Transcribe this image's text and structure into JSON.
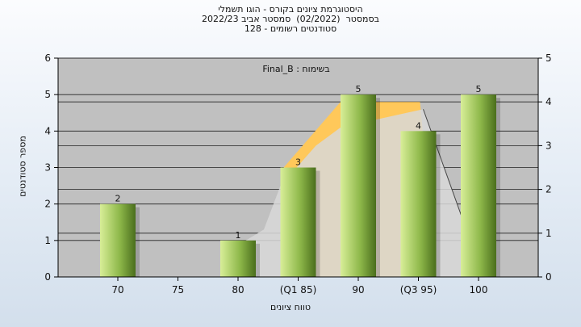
{
  "titles": {
    "line1": "היסטוגרמת ציונים בקורס - הוגו תשמלי",
    "line2": "בסמסטר  (02/2022)  סמסטר אביב 2022/23",
    "line3": "סטודנטים רשומים - 128"
  },
  "colors": {
    "plot_bg": "#c0c0c0",
    "bar_light": "#d8ee98",
    "bar_dark": "#4a6e1c",
    "quartile_band": "#ffc85a",
    "area_fill": "#d8d8d8"
  },
  "chart_data": {
    "type": "bar",
    "xlabel": "טווח ציונים",
    "ylabel": "מספר סטודנטים",
    "annotation": "בשימוח : Final_B",
    "ylim": [
      0,
      6
    ],
    "y_ticks": [
      0,
      1,
      2,
      3,
      4,
      5,
      6
    ],
    "y2lim": [
      0,
      5
    ],
    "y2_ticks": [
      0,
      1,
      2,
      3,
      4,
      5
    ],
    "grid": true,
    "categories": [
      "70",
      "75",
      "80",
      "(Q1 85)",
      "90",
      "(Q3 95)",
      "100"
    ],
    "values": [
      2,
      0,
      1,
      3,
      5,
      4,
      5
    ],
    "value_labels": [
      "2",
      "",
      "1",
      "3",
      "5",
      "4",
      "5"
    ],
    "quartile_band": [
      "(Q1 85)",
      "(Q3 95)"
    ]
  }
}
